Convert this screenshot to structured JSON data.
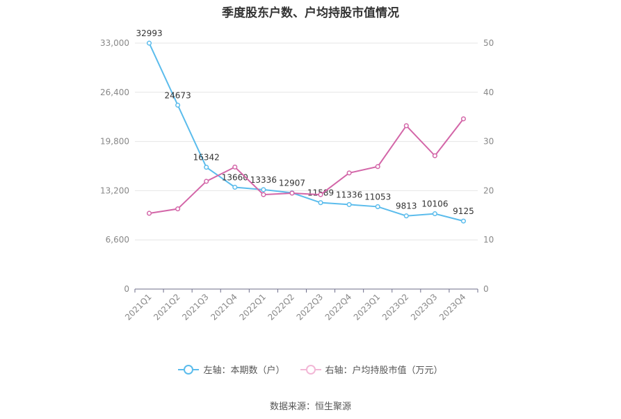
{
  "chart_data": {
    "type": "line",
    "title": "季度股东户数、户均持股市值情况",
    "categories": [
      "2021Q1",
      "2021Q2",
      "2021Q3",
      "2021Q4",
      "2022Q1",
      "2022Q2",
      "2022Q3",
      "2022Q4",
      "2023Q1",
      "2023Q2",
      "2023Q3",
      "2023Q4"
    ],
    "left_axis": {
      "ticks": [
        "0",
        "6,600",
        "13,200",
        "19,800",
        "26,400",
        "33,000"
      ],
      "min": 0,
      "max": 33000
    },
    "right_axis": {
      "ticks": [
        "0",
        "10",
        "20",
        "30",
        "40",
        "50"
      ],
      "min": 0,
      "max": 50
    },
    "series": [
      {
        "name": "左轴：本期数（户）",
        "axis": "left",
        "color": "#5bbcec",
        "values": [
          32993,
          24673,
          16342,
          13660,
          13336,
          12907,
          11589,
          11336,
          11053,
          9813,
          10106,
          9125
        ],
        "labels": [
          "32993",
          "24673",
          "16342",
          "13660",
          "13336",
          "12907",
          "11589",
          "11336",
          "11053",
          "9813",
          "10106",
          "9125"
        ]
      },
      {
        "name": "右轴：户均持股市值（万元）",
        "axis": "right",
        "color": "#d366a8",
        "values": [
          15.4,
          16.3,
          21.9,
          24.8,
          19.2,
          19.5,
          19.2,
          23.6,
          24.9,
          33.2,
          27.1,
          34.6
        ]
      }
    ],
    "grid": true,
    "legend_position": "bottom"
  },
  "source": "数据来源：恒生聚源"
}
